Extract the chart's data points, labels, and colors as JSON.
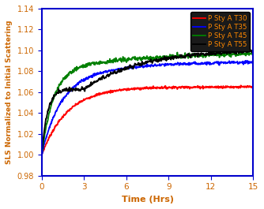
{
  "title": "",
  "xlabel": "Time (Hrs)",
  "ylabel": "SLS Normalized to Initial Scattering",
  "xlim": [
    0,
    15
  ],
  "ylim": [
    0.98,
    1.14
  ],
  "xticks": [
    0,
    3,
    6,
    9,
    12,
    15
  ],
  "yticks": [
    0.98,
    1.0,
    1.02,
    1.04,
    1.06,
    1.08,
    1.1,
    1.12,
    1.14
  ],
  "figure_bg": "#ffffff",
  "plot_bg": "#ffffff",
  "spine_color": "#0000cc",
  "legend_labels": [
    "P Sty A T30",
    "P Sty A T35",
    "P Sty A T45",
    "P Sty A T55"
  ],
  "line_colors": [
    "red",
    "blue",
    "green",
    "black"
  ],
  "label_color": "#cc6600",
  "tick_color": "#cc6600",
  "legend_bg": "#1a1a1a",
  "legend_text_color": "#ff8800"
}
